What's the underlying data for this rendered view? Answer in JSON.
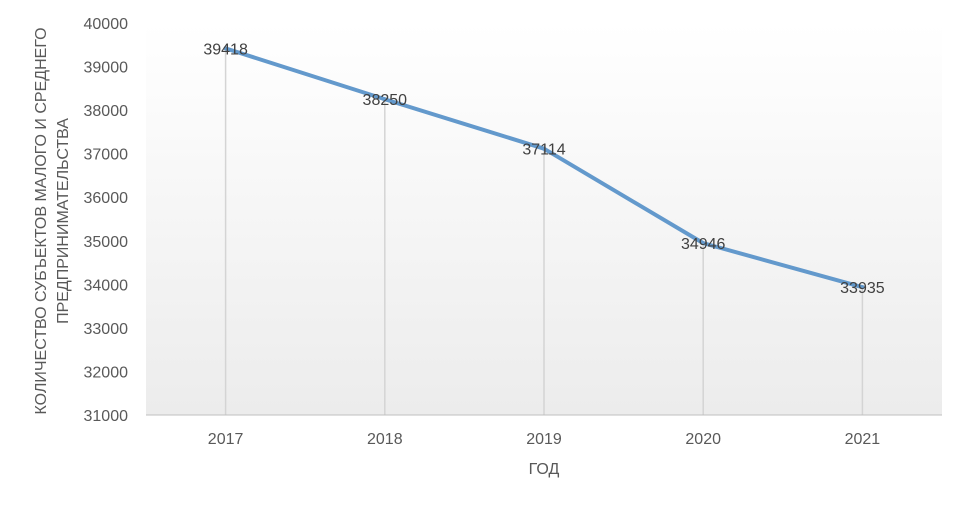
{
  "chart_data": {
    "type": "line",
    "title": "",
    "xlabel": "ГОД",
    "ylabel": "КОЛИЧЕСТВО СУБЪЕКТОВ МАЛОГО И СРЕДНЕГО ПРЕДПРИНИМАТЕЛЬСТВА",
    "ylabel_lines": [
      "КОЛИЧЕСТВО СУБЪЕКТОВ МАЛОГО И СРЕДНЕГО",
      "ПРЕДПРИНИМАТЕЛЬСТВА"
    ],
    "categories": [
      "2017",
      "2018",
      "2019",
      "2020",
      "2021"
    ],
    "series": [
      {
        "values": [
          39418,
          38250,
          37114,
          34946,
          33935
        ],
        "data_labels": [
          "39418",
          "38250",
          "37114",
          "34946",
          "33935"
        ],
        "color": "#6399cc"
      }
    ],
    "ylim": [
      31000,
      40000
    ],
    "yticks": [
      "31000",
      "32000",
      "33000",
      "34000",
      "35000",
      "36000",
      "37000",
      "38000",
      "39000",
      "40000"
    ],
    "grid": "vertical drop lines",
    "legend": "none",
    "background_gradient": [
      "#ffffff",
      "#ececec"
    ],
    "dropline_color": "#d4d4d4",
    "axis_color": "#bfbfbf"
  }
}
